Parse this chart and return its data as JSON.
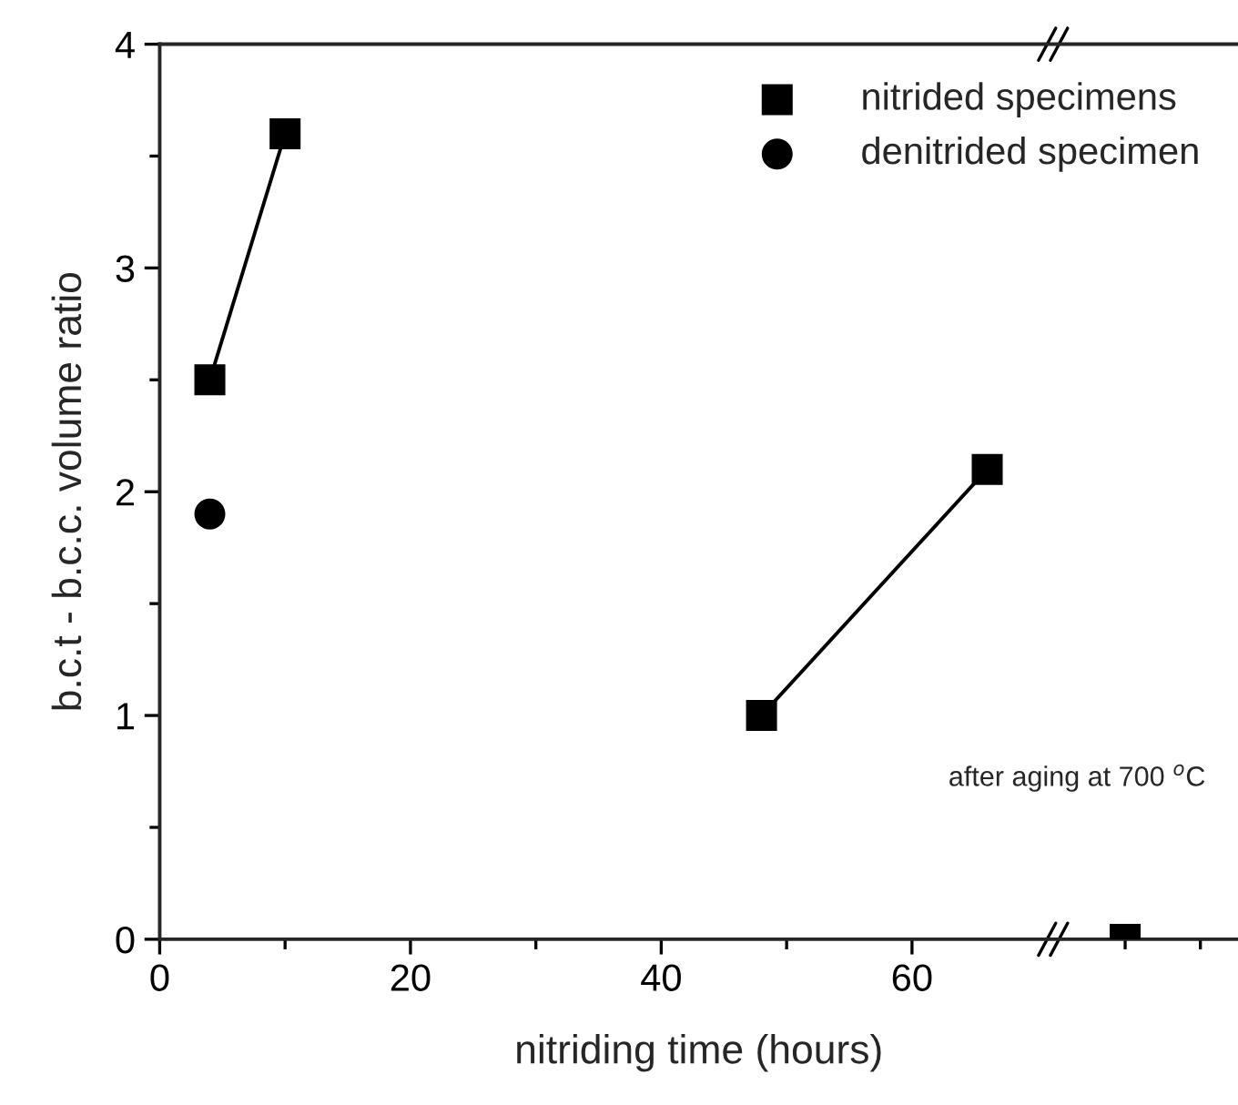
{
  "chart_data": {
    "type": "scatter",
    "xlabel": "nitriding time (hours)",
    "ylabel": "b.c.t - b.c.c. volume ratio",
    "xlim": [
      0,
      86
    ],
    "ylim": [
      0,
      4
    ],
    "xticks": [
      0,
      {
        "value": 10,
        "label": null
      },
      20,
      {
        "value": 30,
        "label": null
      },
      40,
      {
        "value": 50,
        "label": null
      },
      60,
      {
        "value": 77,
        "label": null
      },
      {
        "value": 83,
        "label": null
      }
    ],
    "yticks": [
      0,
      {
        "value": 0.5,
        "label": null
      },
      1,
      {
        "value": 1.5,
        "label": null
      },
      2,
      {
        "value": 2.5,
        "label": null
      },
      3,
      {
        "value": 3.5,
        "label": null
      },
      4
    ],
    "series": [
      {
        "name": "nitrided specimens",
        "marker": "square",
        "color": "#000000",
        "x": [
          4,
          10,
          48,
          66,
          77
        ],
        "values": [
          2.5,
          3.6,
          1.0,
          2.1,
          0
        ]
      },
      {
        "name": "denitrided specimen",
        "marker": "circle",
        "color": "#000000",
        "x": [
          4
        ],
        "values": [
          1.9
        ]
      },
      {
        "type": "line",
        "marker": "none",
        "color": "#000000",
        "x": [
          4,
          10
        ],
        "values": [
          2.5,
          3.6
        ]
      },
      {
        "type": "line",
        "marker": "none",
        "color": "#000000",
        "x": [
          48,
          66
        ],
        "values": [
          1.0,
          2.1
        ]
      }
    ],
    "annotations": [
      "after aging at 700 $^{o}$C"
    ],
    "legend": "top right",
    "grid": false
  }
}
